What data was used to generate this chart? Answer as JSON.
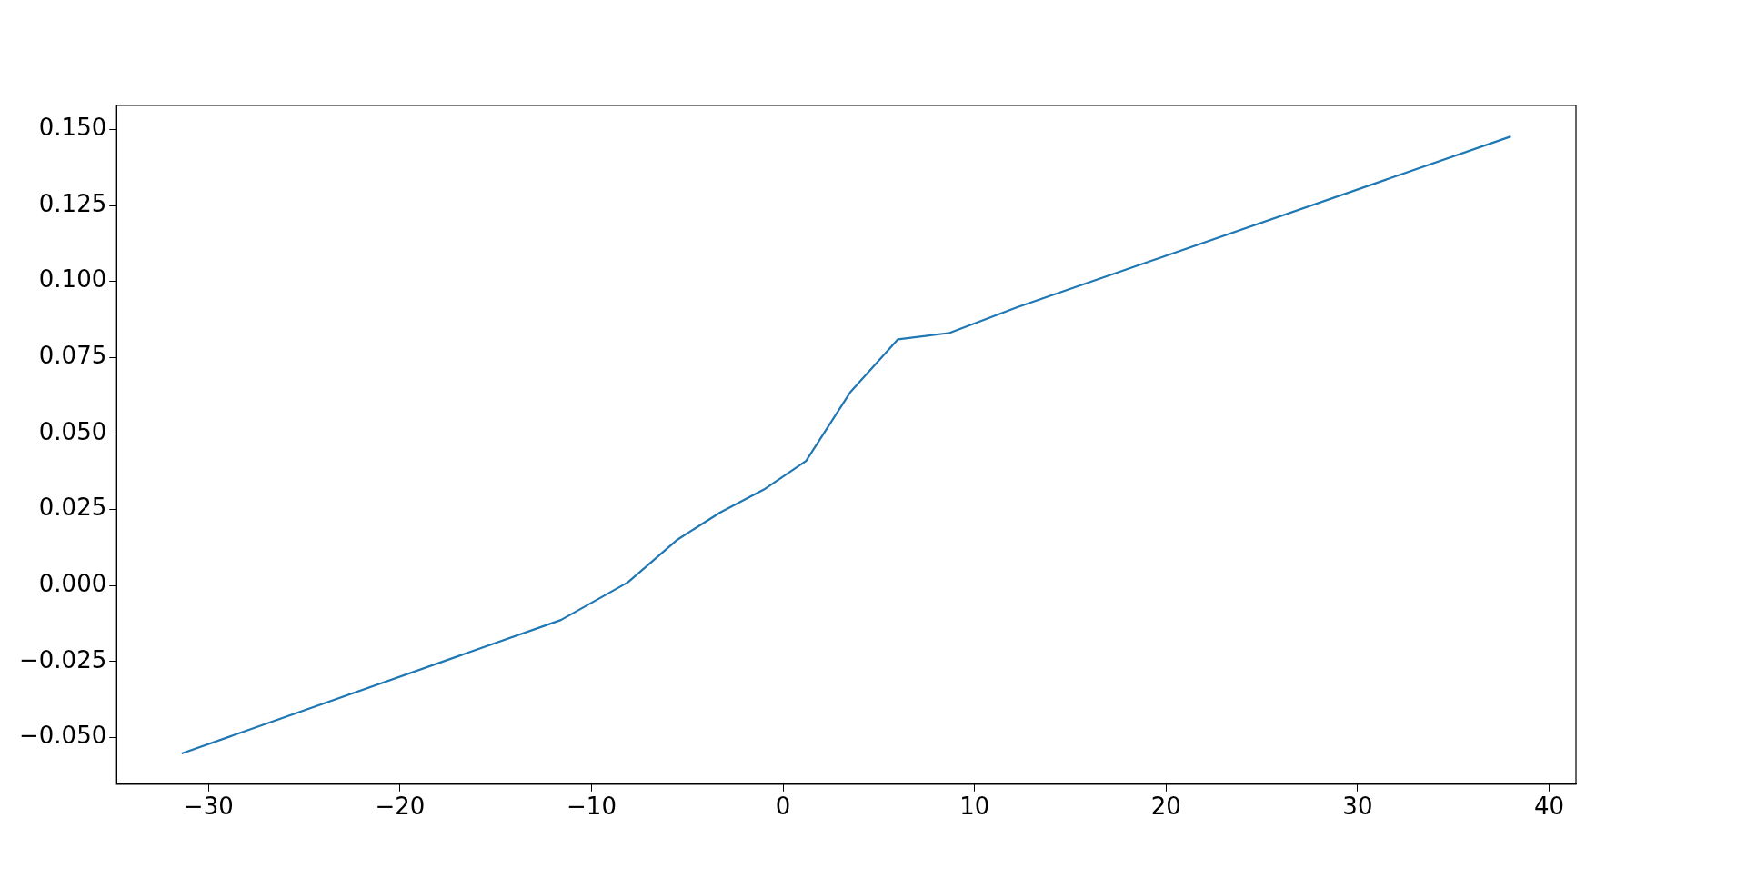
{
  "chart_data": {
    "type": "line",
    "x": [
      -31.4,
      -11.6,
      -8.1,
      -5.5,
      -3.3,
      -1.0,
      1.2,
      3.5,
      6.0,
      8.7,
      12.2,
      38.0
    ],
    "series": [
      {
        "color": "#1f77b4",
        "values": [
          -0.0552,
          -0.0113,
          0.0011,
          0.0152,
          0.024,
          0.0316,
          0.041,
          0.0635,
          0.081,
          0.0831,
          0.0915,
          0.1477
        ]
      }
    ],
    "xlim": [
      -34.8,
      41.4
    ],
    "ylim": [
      -0.0653,
      0.1579
    ],
    "xticks": [
      {
        "value": -30,
        "label": "−30"
      },
      {
        "value": -20,
        "label": "−20"
      },
      {
        "value": -10,
        "label": "−10"
      },
      0,
      10,
      20,
      30,
      40
    ],
    "yticks": [
      {
        "value": -0.05,
        "label": "−0.050"
      },
      {
        "value": -0.025,
        "label": "−0.025"
      },
      {
        "value": 0,
        "label": "0.000"
      },
      {
        "value": 0.025,
        "label": "0.025"
      },
      {
        "value": 0.05,
        "label": "0.050"
      },
      {
        "value": 0.075,
        "label": "0.075"
      },
      {
        "value": 0.1,
        "label": "0.100"
      },
      {
        "value": 0.125,
        "label": "0.125"
      },
      {
        "value": 0.15,
        "label": "0.150"
      }
    ],
    "grid": false,
    "legend": false,
    "marker": "none",
    "line_style": "solid"
  }
}
